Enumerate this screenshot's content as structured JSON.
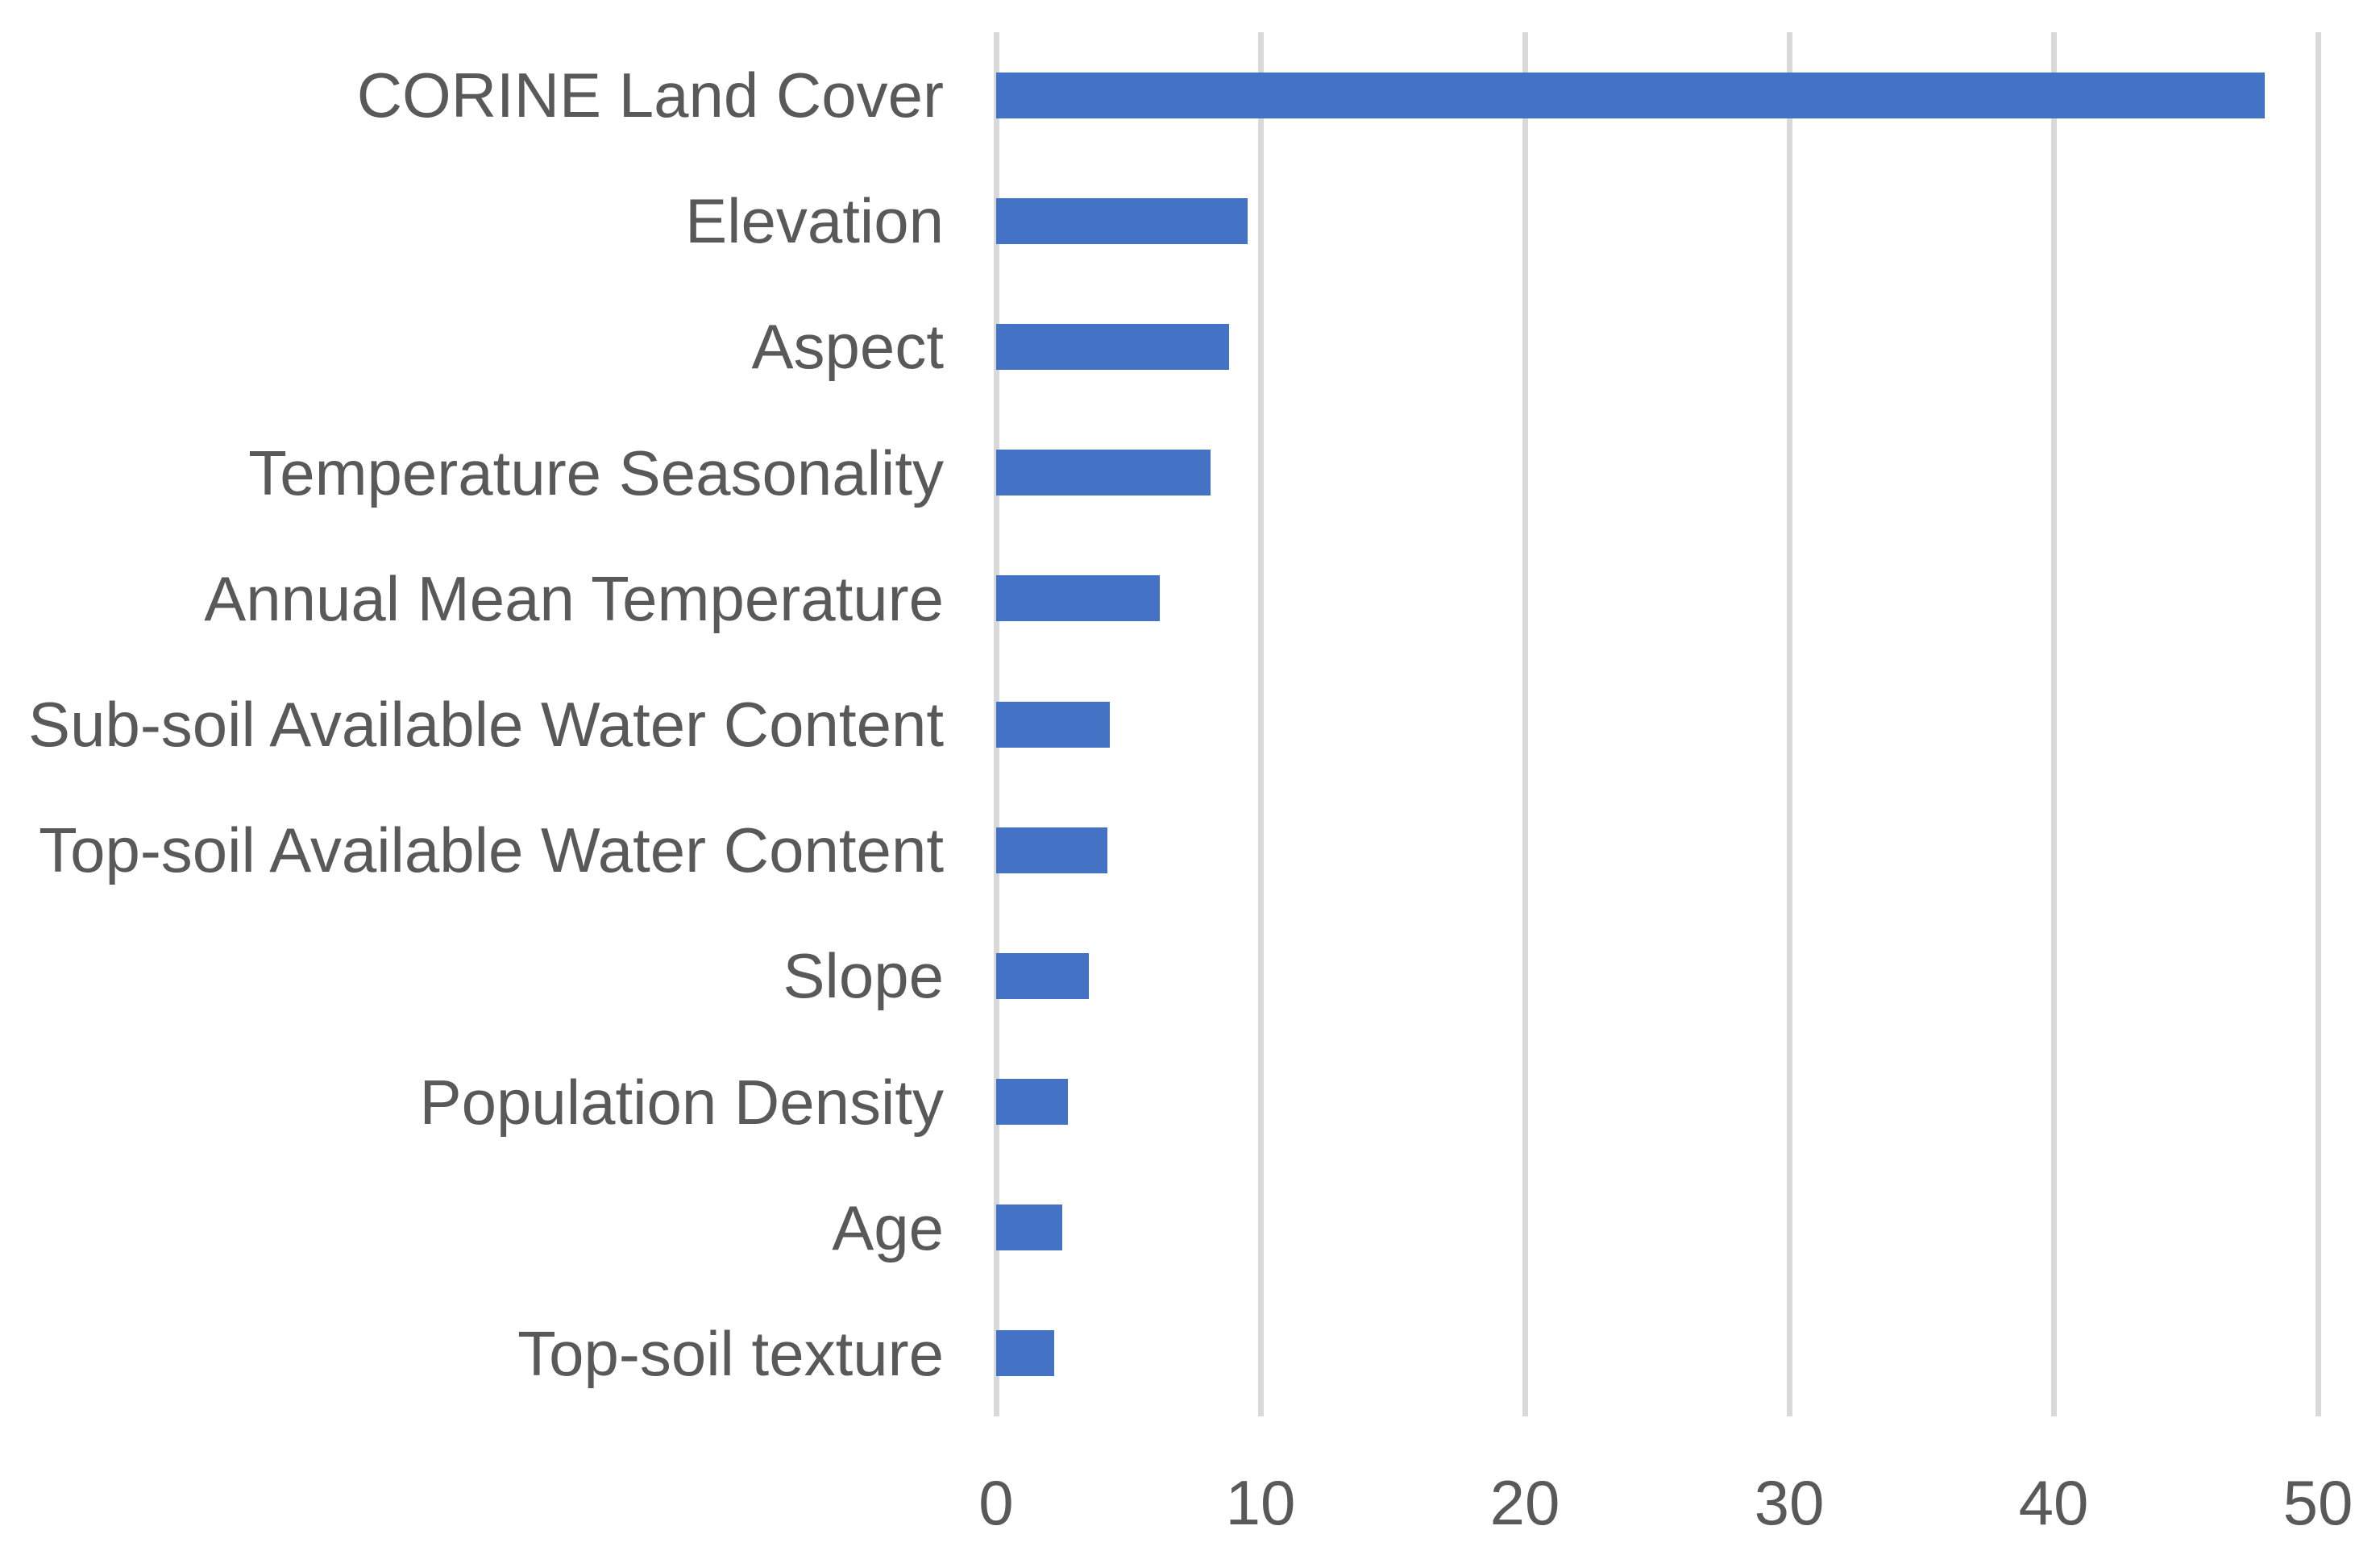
{
  "chart_data": {
    "type": "bar",
    "orientation": "horizontal",
    "title": "",
    "xlabel": "",
    "ylabel": "",
    "categories": [
      "CORINE Land Cover",
      "Elevation",
      "Aspect",
      "Temperature Seasonality",
      "Annual Mean Temperature",
      "Sub-soil Available Water Content",
      "Top-soil Available Water Content",
      "Slope",
      "Population Density",
      "Age",
      "Top-soil texture"
    ],
    "values": [
      48,
      9.5,
      8.8,
      8.1,
      6.2,
      4.3,
      4.2,
      3.5,
      2.7,
      2.5,
      2.2
    ],
    "xlim": [
      0,
      50
    ],
    "x_ticks": [
      0,
      10,
      20,
      30,
      40,
      50
    ],
    "grid": true,
    "legend": false,
    "colors": {
      "bar": "#4472C4",
      "gridline": "#D9D9D9",
      "text": "#595959",
      "background": "#FFFFFF"
    }
  }
}
